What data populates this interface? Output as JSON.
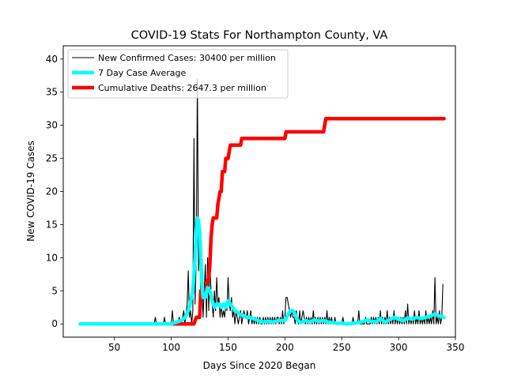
{
  "chart_data": {
    "type": "line",
    "title": "COVID-19 Stats For Northampton County, VA",
    "xlabel": "Days Since 2020 Began",
    "ylabel": "New COVID-19 Cases",
    "xlim": [
      5,
      350
    ],
    "ylim": [
      -2,
      42
    ],
    "x_ticks": [
      50,
      100,
      150,
      200,
      250,
      300,
      350
    ],
    "y_ticks": [
      0,
      5,
      10,
      15,
      20,
      25,
      30,
      35,
      40
    ],
    "grid": false,
    "legend_position": "top-left",
    "series": [
      {
        "name": "New Confirmed Cases: 30400 per million",
        "color": "#000000",
        "style": "thin",
        "points": [
          [
            20,
            0
          ],
          [
            85,
            0
          ],
          [
            86,
            1
          ],
          [
            87,
            0
          ],
          [
            93,
            0
          ],
          [
            94,
            1
          ],
          [
            95,
            0
          ],
          [
            100,
            0
          ],
          [
            101,
            2
          ],
          [
            102,
            0
          ],
          [
            106,
            0
          ],
          [
            107,
            1
          ],
          [
            108,
            0
          ],
          [
            110,
            1
          ],
          [
            111,
            2
          ],
          [
            112,
            0
          ],
          [
            114,
            3
          ],
          [
            115,
            8
          ],
          [
            116,
            1
          ],
          [
            117,
            2
          ],
          [
            118,
            0
          ],
          [
            119,
            2
          ],
          [
            120,
            28
          ],
          [
            121,
            3
          ],
          [
            122,
            10
          ],
          [
            123,
            37
          ],
          [
            124,
            8
          ],
          [
            125,
            14
          ],
          [
            126,
            3
          ],
          [
            127,
            6
          ],
          [
            128,
            1
          ],
          [
            129,
            5
          ],
          [
            130,
            9
          ],
          [
            131,
            1
          ],
          [
            132,
            10
          ],
          [
            133,
            2
          ],
          [
            134,
            9
          ],
          [
            135,
            5
          ],
          [
            136,
            3
          ],
          [
            137,
            1
          ],
          [
            138,
            5
          ],
          [
            139,
            2
          ],
          [
            140,
            7
          ],
          [
            141,
            3
          ],
          [
            142,
            4
          ],
          [
            143,
            1
          ],
          [
            144,
            3
          ],
          [
            145,
            1
          ],
          [
            146,
            2
          ],
          [
            147,
            1
          ],
          [
            148,
            3
          ],
          [
            149,
            2
          ],
          [
            150,
            7
          ],
          [
            151,
            3
          ],
          [
            152,
            2
          ],
          [
            153,
            4
          ],
          [
            154,
            1
          ],
          [
            155,
            2
          ],
          [
            156,
            0
          ],
          [
            157,
            2
          ],
          [
            158,
            1
          ],
          [
            159,
            0
          ],
          [
            160,
            1
          ],
          [
            161,
            2
          ],
          [
            162,
            0
          ],
          [
            163,
            1
          ],
          [
            164,
            2
          ],
          [
            165,
            1
          ],
          [
            166,
            1
          ],
          [
            167,
            2
          ],
          [
            168,
            0
          ],
          [
            169,
            1
          ],
          [
            170,
            2
          ],
          [
            171,
            0
          ],
          [
            172,
            1
          ],
          [
            173,
            0
          ],
          [
            174,
            1
          ],
          [
            175,
            0
          ],
          [
            176,
            1
          ],
          [
            177,
            0
          ],
          [
            178,
            1
          ],
          [
            179,
            0
          ],
          [
            180,
            0
          ],
          [
            181,
            1
          ],
          [
            182,
            0
          ],
          [
            183,
            1
          ],
          [
            184,
            0
          ],
          [
            185,
            1
          ],
          [
            186,
            0
          ],
          [
            187,
            1
          ],
          [
            188,
            0
          ],
          [
            189,
            1
          ],
          [
            190,
            0
          ],
          [
            191,
            1
          ],
          [
            192,
            0
          ],
          [
            193,
            1
          ],
          [
            194,
            1
          ],
          [
            195,
            0
          ],
          [
            196,
            1
          ],
          [
            197,
            0
          ],
          [
            198,
            2
          ],
          [
            199,
            0
          ],
          [
            200,
            1
          ],
          [
            201,
            4
          ],
          [
            202,
            4
          ],
          [
            203,
            3
          ],
          [
            204,
            2
          ],
          [
            205,
            1
          ],
          [
            206,
            2
          ],
          [
            207,
            1
          ],
          [
            208,
            1
          ],
          [
            209,
            0
          ],
          [
            210,
            2
          ],
          [
            211,
            1
          ],
          [
            212,
            0
          ],
          [
            213,
            2
          ],
          [
            214,
            0
          ],
          [
            215,
            1
          ],
          [
            216,
            2
          ],
          [
            217,
            1
          ],
          [
            218,
            0
          ],
          [
            219,
            1
          ],
          [
            220,
            0
          ],
          [
            221,
            1
          ],
          [
            222,
            0
          ],
          [
            223,
            1
          ],
          [
            224,
            0
          ],
          [
            225,
            2
          ],
          [
            226,
            0
          ],
          [
            227,
            1
          ],
          [
            228,
            0
          ],
          [
            229,
            1
          ],
          [
            230,
            0
          ],
          [
            231,
            1
          ],
          [
            232,
            0
          ],
          [
            233,
            1
          ],
          [
            234,
            0
          ],
          [
            235,
            1
          ],
          [
            236,
            0
          ],
          [
            237,
            2
          ],
          [
            238,
            0
          ],
          [
            239,
            1
          ],
          [
            240,
            0
          ],
          [
            241,
            1
          ],
          [
            242,
            0
          ],
          [
            243,
            0
          ],
          [
            244,
            1
          ],
          [
            245,
            0
          ],
          [
            250,
            0
          ],
          [
            251,
            1
          ],
          [
            252,
            0
          ],
          [
            259,
            0
          ],
          [
            260,
            1
          ],
          [
            261,
            0
          ],
          [
            264,
            0
          ],
          [
            265,
            2
          ],
          [
            266,
            0
          ],
          [
            270,
            0
          ],
          [
            271,
            1
          ],
          [
            272,
            0
          ],
          [
            275,
            0
          ],
          [
            276,
            1
          ],
          [
            277,
            0
          ],
          [
            278,
            1
          ],
          [
            279,
            0
          ],
          [
            280,
            1
          ],
          [
            281,
            0
          ],
          [
            282,
            1
          ],
          [
            283,
            0
          ],
          [
            284,
            2
          ],
          [
            285,
            0
          ],
          [
            286,
            1
          ],
          [
            287,
            0
          ],
          [
            288,
            1
          ],
          [
            289,
            0
          ],
          [
            290,
            2
          ],
          [
            291,
            0
          ],
          [
            292,
            1
          ],
          [
            293,
            0
          ],
          [
            294,
            1
          ],
          [
            295,
            0
          ],
          [
            296,
            2
          ],
          [
            297,
            0
          ],
          [
            298,
            1
          ],
          [
            299,
            0
          ],
          [
            300,
            1
          ],
          [
            301,
            0
          ],
          [
            302,
            1
          ],
          [
            303,
            0
          ],
          [
            304,
            1
          ],
          [
            305,
            0
          ],
          [
            306,
            2
          ],
          [
            307,
            0
          ],
          [
            308,
            3
          ],
          [
            309,
            0
          ],
          [
            310,
            1
          ],
          [
            311,
            0
          ],
          [
            312,
            1
          ],
          [
            313,
            0
          ],
          [
            314,
            2
          ],
          [
            315,
            0
          ],
          [
            316,
            1
          ],
          [
            317,
            0
          ],
          [
            318,
            2
          ],
          [
            319,
            0
          ],
          [
            320,
            1
          ],
          [
            321,
            0
          ],
          [
            322,
            1
          ],
          [
            323,
            0
          ],
          [
            324,
            2
          ],
          [
            325,
            0
          ],
          [
            326,
            1
          ],
          [
            327,
            0
          ],
          [
            328,
            1
          ],
          [
            329,
            0
          ],
          [
            330,
            2
          ],
          [
            331,
            0
          ],
          [
            332,
            7
          ],
          [
            333,
            0
          ],
          [
            334,
            1
          ],
          [
            335,
            0
          ],
          [
            336,
            2
          ],
          [
            337,
            0
          ],
          [
            338,
            1
          ],
          [
            339,
            6
          ]
        ]
      },
      {
        "name": "7 Day Case Average",
        "color": "#00ffff",
        "style": "thick",
        "points": [
          [
            20,
            0
          ],
          [
            100,
            0
          ],
          [
            105,
            0.3
          ],
          [
            110,
            0.6
          ],
          [
            113,
            1.2
          ],
          [
            116,
            2.5
          ],
          [
            119,
            5
          ],
          [
            121,
            10
          ],
          [
            122,
            14
          ],
          [
            123,
            16
          ],
          [
            124,
            15.5
          ],
          [
            125,
            14
          ],
          [
            126,
            10
          ],
          [
            127,
            6
          ],
          [
            128,
            4
          ],
          [
            130,
            4
          ],
          [
            132,
            5.5
          ],
          [
            134,
            5
          ],
          [
            136,
            3.5
          ],
          [
            138,
            2.5
          ],
          [
            140,
            3
          ],
          [
            142,
            3
          ],
          [
            144,
            2.5
          ],
          [
            146,
            3
          ],
          [
            148,
            2.5
          ],
          [
            150,
            3.5
          ],
          [
            152,
            3
          ],
          [
            154,
            2.5
          ],
          [
            156,
            2
          ],
          [
            158,
            1.8
          ],
          [
            160,
            1.5
          ],
          [
            163,
            1.3
          ],
          [
            166,
            1
          ],
          [
            169,
            1
          ],
          [
            172,
            0.8
          ],
          [
            175,
            0.6
          ],
          [
            178,
            0.4
          ],
          [
            180,
            0.3
          ],
          [
            185,
            0.4
          ],
          [
            190,
            0.3
          ],
          [
            195,
            0.5
          ],
          [
            200,
            0.5
          ],
          [
            203,
            1.5
          ],
          [
            205,
            2
          ],
          [
            207,
            2
          ],
          [
            209,
            1.5
          ],
          [
            211,
            0.5
          ],
          [
            214,
            0.2
          ],
          [
            218,
            0.5
          ],
          [
            222,
            0.3
          ],
          [
            226,
            0.6
          ],
          [
            230,
            0.4
          ],
          [
            234,
            0.5
          ],
          [
            238,
            0.3
          ],
          [
            242,
            0.2
          ],
          [
            246,
            0.1
          ],
          [
            250,
            0.1
          ],
          [
            255,
            0
          ],
          [
            260,
            0.1
          ],
          [
            264,
            0.2
          ],
          [
            268,
            0.3
          ],
          [
            272,
            0.6
          ],
          [
            276,
            0.4
          ],
          [
            280,
            0.3
          ],
          [
            284,
            0.8
          ],
          [
            288,
            0.3
          ],
          [
            292,
            0.6
          ],
          [
            296,
            1
          ],
          [
            300,
            0.7
          ],
          [
            304,
            0.5
          ],
          [
            308,
            0.9
          ],
          [
            312,
            0.7
          ],
          [
            316,
            1
          ],
          [
            320,
            0.8
          ],
          [
            324,
            1
          ],
          [
            328,
            1.2
          ],
          [
            332,
            1.5
          ],
          [
            336,
            1.2
          ],
          [
            340,
            1
          ]
        ]
      },
      {
        "name": "Cumulative Deaths: 2647.3 per million",
        "color": "#ff0000",
        "style": "thick",
        "points": [
          [
            20,
            0
          ],
          [
            120,
            0
          ],
          [
            122,
            1
          ],
          [
            125,
            1
          ],
          [
            126,
            5
          ],
          [
            130,
            5
          ],
          [
            131,
            6
          ],
          [
            133,
            7
          ],
          [
            134,
            9
          ],
          [
            135,
            13
          ],
          [
            136,
            15
          ],
          [
            137,
            16
          ],
          [
            140,
            16
          ],
          [
            141,
            18
          ],
          [
            142,
            19
          ],
          [
            143,
            20
          ],
          [
            144,
            20
          ],
          [
            145,
            23
          ],
          [
            147,
            23
          ],
          [
            148,
            25
          ],
          [
            150,
            25
          ],
          [
            151,
            26
          ],
          [
            152,
            27
          ],
          [
            160,
            27
          ],
          [
            161,
            27
          ],
          [
            162,
            28
          ],
          [
            200,
            28
          ],
          [
            201,
            29
          ],
          [
            234,
            29
          ],
          [
            235,
            30
          ],
          [
            236,
            31
          ],
          [
            340,
            31
          ]
        ]
      }
    ]
  }
}
